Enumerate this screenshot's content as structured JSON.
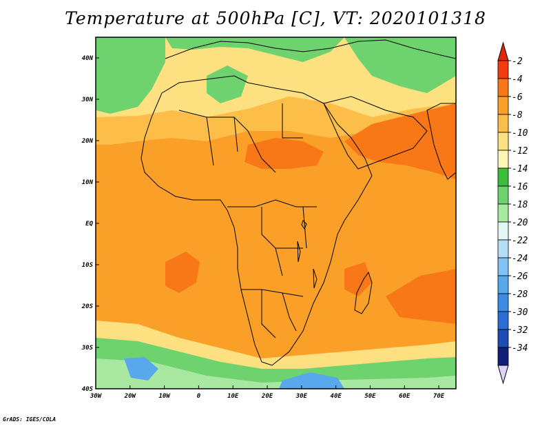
{
  "title": "Temperature at 500hPa [C], VT: 2020101318",
  "credit": "GrADS: IGES/COLA",
  "map": {
    "region": "Africa",
    "lon_range": [
      -30,
      75
    ],
    "lat_range": [
      -40,
      45
    ],
    "x_ticks": [
      {
        "lon": -30,
        "label": "30W"
      },
      {
        "lon": -20,
        "label": "20W"
      },
      {
        "lon": -10,
        "label": "10W"
      },
      {
        "lon": 0,
        "label": "0"
      },
      {
        "lon": 10,
        "label": "10E"
      },
      {
        "lon": 20,
        "label": "20E"
      },
      {
        "lon": 30,
        "label": "30E"
      },
      {
        "lon": 40,
        "label": "40E"
      },
      {
        "lon": 50,
        "label": "50E"
      },
      {
        "lon": 60,
        "label": "60E"
      },
      {
        "lon": 70,
        "label": "70E"
      }
    ],
    "y_ticks": [
      {
        "lat": 40,
        "label": "40N"
      },
      {
        "lat": 30,
        "label": "30N"
      },
      {
        "lat": 20,
        "label": "20N"
      },
      {
        "lat": 10,
        "label": "10N"
      },
      {
        "lat": 0,
        "label": "EQ"
      },
      {
        "lat": -10,
        "label": "10S"
      },
      {
        "lat": -20,
        "label": "20S"
      },
      {
        "lat": -30,
        "label": "30S"
      },
      {
        "lat": -40,
        "label": "40S"
      }
    ]
  },
  "colorbar": {
    "levels": [
      "-2",
      "-4",
      "-6",
      "-8",
      "-10",
      "-12",
      "-14",
      "-16",
      "-18",
      "-20",
      "-22",
      "-24",
      "-26",
      "-28",
      "-30",
      "-32",
      "-34"
    ],
    "colors": [
      "#f03c10",
      "#f87818",
      "#faa028",
      "#fcbe48",
      "#fde080",
      "#fef6b4",
      "#3cbe3c",
      "#6ed26e",
      "#a8e8a0",
      "#e2f8f4",
      "#b4def8",
      "#82c2f4",
      "#5aa8ec",
      "#3c8ce4",
      "#2a6ed4",
      "#1c4cb4",
      "#10207a"
    ],
    "top_arrow_color": "#e02808",
    "bottom_arrow_color": "#dcd4f8"
  },
  "colors": {
    "ocean_base": "#faa028",
    "africa_land": "#faa028",
    "hot_core": "#f87818",
    "warm_sahara": "#fcbe48",
    "north_cool": "#fde080",
    "mid_lat": "#6ed26e",
    "southern_ocean": "#a8e8a0",
    "cold_pool": "#5aa8ec",
    "frame": "#000000"
  }
}
